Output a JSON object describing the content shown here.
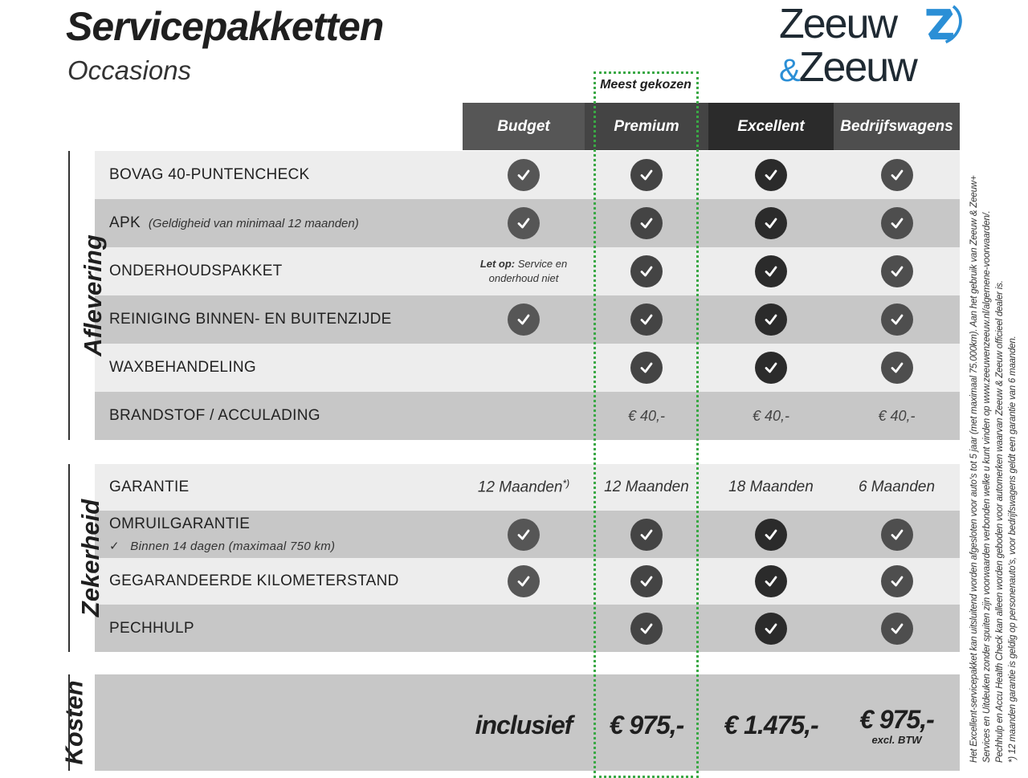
{
  "header": {
    "title": "Servicepakketten",
    "subtitle": "Occasions",
    "logo_text": [
      "Zeeuw",
      "&",
      "Zeeuw"
    ],
    "badge": "Meest gekozen"
  },
  "columns": [
    "Budget",
    "Premium",
    "Excellent",
    "Bedrijfswagens"
  ],
  "colors": {
    "budget": "#565656",
    "premium": "#444444",
    "excellent": "#2b2b2b",
    "bedrijfswagens": "#4e4e4e",
    "highlight": "#3aa845",
    "logo_blue": "#2b8fd6"
  },
  "sections": [
    {
      "label": "Aflevering",
      "rows": [
        {
          "label": "BOVAG 40-PUNTENCHECK",
          "sub": "",
          "cells": [
            "check",
            "check",
            "check",
            "check"
          ]
        },
        {
          "label": "APK",
          "sub": "(Geldigheid van minimaal 12 maanden)",
          "cells": [
            "check",
            "check",
            "check",
            "check"
          ]
        },
        {
          "label": "ONDERHOUDSPAKKET",
          "sub": "",
          "cells": [
            "note",
            "check",
            "check",
            "check"
          ],
          "note_bold": "Let op:",
          "note_text": " Service en",
          "note_text2": "onderhoud niet"
        },
        {
          "label": "REINIGING BINNEN- EN BUITENZIJDE",
          "sub": "",
          "cells": [
            "check",
            "check",
            "check",
            "check"
          ]
        },
        {
          "label": "WAXBEHANDELING",
          "sub": "",
          "cells": [
            "",
            "check",
            "check",
            "check"
          ]
        },
        {
          "label": "BRANDSTOF / ACCULADING",
          "sub": "",
          "cells": [
            "",
            "€ 40,-",
            "€ 40,-",
            "€ 40,-"
          ]
        }
      ]
    },
    {
      "label": "Zekerheid",
      "rows": [
        {
          "label": "GARANTIE",
          "sub": "",
          "cells": [
            "12 Maanden",
            "12 Maanden",
            "18 Maanden",
            "6 Maanden"
          ],
          "footnote_mark": "*)"
        },
        {
          "label": "OMRUILGARANTIE",
          "sub2": "Binnen 14 dagen (maximaal 750 km)",
          "cells": [
            "check",
            "check",
            "check",
            "check"
          ]
        },
        {
          "label": "GEGARANDEERDE KILOMETERSTAND",
          "sub": "",
          "cells": [
            "check",
            "check",
            "check",
            "check"
          ]
        },
        {
          "label": "PECHHULP",
          "sub": "",
          "cells": [
            "",
            "check",
            "check",
            "check"
          ]
        }
      ]
    },
    {
      "label": "Kosten",
      "rows": [
        {
          "label": "",
          "cells": [
            "inclusief",
            "€ 975,-",
            "€ 1.475,-",
            "€ 975,-"
          ],
          "excl": "excl. BTW"
        }
      ]
    }
  ],
  "footnotes": [
    "Het Excellent-servicepakket kan uitsluitend worden afgesloten voor auto's tot 5 jaar (met maximaal 75.000km). Aan het gebruik van Zeeuw & Zeeuw+",
    "Services en Uitdeuken zonder spuiten zijn voorwaarden verbonden welke u kunt vinden op www.zeeuwenzeeuw.nl/algemene-voorwaarden/.",
    "Pechhulp en Accu Health Check kan alleen worden geboden voor automerken waarvan Zeeuw & Zeeuw officieel dealer is.",
    "*) 12 maanden garantie is geldig op personenauto's, voor bedrijfswagens geldt een garantie van 6 maanden."
  ]
}
